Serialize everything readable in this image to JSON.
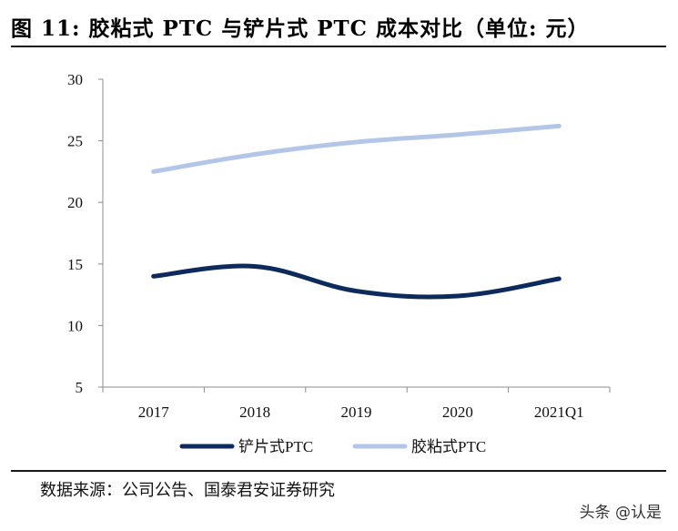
{
  "header": {
    "title": "图 11: 胶粘式 PTC 与铲片式 PTC 成本对比（单位: 元）"
  },
  "footer": {
    "source": "数据来源：公司公告、国泰君安证券研究",
    "watermark": "头条 @认是"
  },
  "chart_data": {
    "type": "line",
    "title": "图 11: 胶粘式 PTC 与铲片式 PTC 成本对比（单位: 元）",
    "xlabel": "",
    "ylabel": "",
    "categories": [
      "2017",
      "2018",
      "2019",
      "2020",
      "2021Q1"
    ],
    "ylim": [
      5,
      30
    ],
    "yticks": [
      "5",
      "10",
      "15",
      "20",
      "25",
      "30"
    ],
    "grid": false,
    "legend_position": "bottom",
    "series": [
      {
        "name": "铲片式PTC",
        "color": "#0d2a5c",
        "values": [
          14.0,
          14.8,
          12.8,
          12.4,
          13.8
        ]
      },
      {
        "name": "胶粘式PTC",
        "color": "#b4c6e7",
        "values": [
          22.5,
          23.9,
          24.9,
          25.5,
          26.2
        ]
      }
    ]
  }
}
